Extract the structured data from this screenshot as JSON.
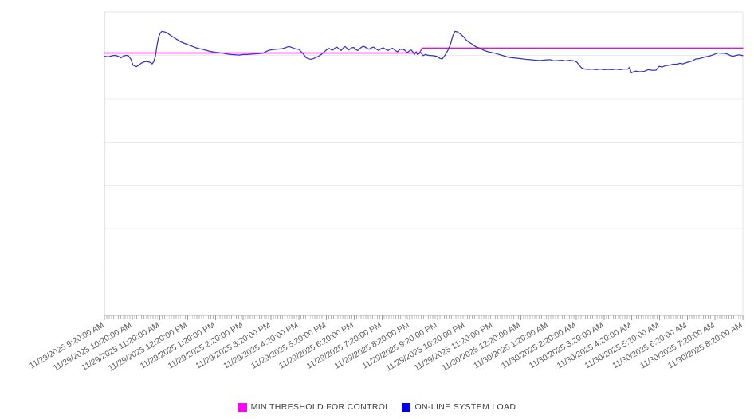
{
  "page": {
    "background": "#ffffff"
  },
  "chart_data": {
    "type": "line",
    "title": "",
    "xlabel": "",
    "ylabel": "",
    "x_axis": {
      "range_hours": [
        0,
        23
      ],
      "minor_ticks_per_hour": 12,
      "label_rotation_deg": -30,
      "tick_labels": [
        "11/29/2025 9:20:00 AM",
        "11/29/2025 10:20:00 AM",
        "11/29/2025 11:20:00 AM",
        "11/29/2025 12:20:00 PM",
        "11/29/2025 1:20:00 PM",
        "11/29/2025 2:20:00 PM",
        "11/29/2025 3:20:00 PM",
        "11/29/2025 4:20:00 PM",
        "11/29/2025 5:20:00 PM",
        "11/29/2025 6:20:00 PM",
        "11/29/2025 7:20:00 PM",
        "11/29/2025 8:20:00 PM",
        "11/29/2025 9:20:00 PM",
        "11/29/2025 10:20:00 PM",
        "11/29/2025 11:20:00 PM",
        "11/30/2025 12:20:00 AM",
        "11/30/2025 1:20:00 AM",
        "11/30/2025 2:20:00 AM",
        "11/30/2025 3:20:00 AM",
        "11/30/2025 4:20:00 AM",
        "11/30/2025 5:20:00 AM",
        "11/30/2025 6:20:00 AM",
        "11/30/2025 7:20:00 AM",
        "11/30/2025 8:20:00 AM"
      ]
    },
    "y_axis": {
      "tick_labels_visible": false,
      "gridline_rows": 7,
      "range": [
        0,
        100
      ],
      "unit": "normalized (no y-axis tick labels rendered)"
    },
    "grid": true,
    "legend_position": "bottom-center",
    "series": [
      {
        "name": "MIN THRESHOLD FOR CONTROL",
        "color": "#e412e0",
        "stroke_width": 1.5,
        "points": [
          [
            0,
            86.5
          ],
          [
            11.35,
            86.5
          ],
          [
            11.45,
            88.1
          ],
          [
            23,
            88.1
          ]
        ]
      },
      {
        "name": "ON-LINE SYSTEM LOAD",
        "color": "#3432c8",
        "stroke_width": 1.25,
        "points": [
          [
            0,
            85.4
          ],
          [
            0.14,
            85.2
          ],
          [
            0.29,
            85.6
          ],
          [
            0.4,
            85.7
          ],
          [
            0.52,
            85.3
          ],
          [
            0.6,
            84.9
          ],
          [
            0.69,
            85.5
          ],
          [
            0.78,
            85.7
          ],
          [
            0.86,
            85.6
          ],
          [
            0.95,
            84.5
          ],
          [
            1.03,
            82.5
          ],
          [
            1.15,
            82
          ],
          [
            1.23,
            82.4
          ],
          [
            1.32,
            83.1
          ],
          [
            1.41,
            83.5
          ],
          [
            1.49,
            83.7
          ],
          [
            1.58,
            83.6
          ],
          [
            1.67,
            83.3
          ],
          [
            1.72,
            82.9
          ],
          [
            1.78,
            83.7
          ],
          [
            1.84,
            85.6
          ],
          [
            1.89,
            88.7
          ],
          [
            1.95,
            91.6
          ],
          [
            2.01,
            93
          ],
          [
            2.07,
            93.6
          ],
          [
            2.12,
            93.5
          ],
          [
            2.18,
            93.4
          ],
          [
            2.24,
            93.2
          ],
          [
            2.3,
            92.8
          ],
          [
            2.35,
            92.5
          ],
          [
            2.41,
            92.1
          ],
          [
            2.5,
            91.6
          ],
          [
            2.58,
            91.1
          ],
          [
            2.67,
            90.6
          ],
          [
            2.76,
            90.1
          ],
          [
            2.84,
            89.8
          ],
          [
            2.96,
            89.4
          ],
          [
            3.07,
            89
          ],
          [
            3.19,
            88.6
          ],
          [
            3.3,
            88.2
          ],
          [
            3.42,
            87.9
          ],
          [
            3.53,
            87.7
          ],
          [
            3.65,
            87.4
          ],
          [
            3.76,
            87.1
          ],
          [
            3.88,
            86.9
          ],
          [
            3.99,
            86.7
          ],
          [
            4.11,
            86.6
          ],
          [
            4.22,
            86.5
          ],
          [
            4.34,
            86.3
          ],
          [
            4.45,
            86.1
          ],
          [
            4.56,
            86
          ],
          [
            4.71,
            85.9
          ],
          [
            4.85,
            85.8
          ],
          [
            5,
            86
          ],
          [
            5.14,
            86
          ],
          [
            5.28,
            86.1
          ],
          [
            5.43,
            86.2
          ],
          [
            5.57,
            86.3
          ],
          [
            5.71,
            86.4
          ],
          [
            5.83,
            87
          ],
          [
            5.94,
            87.4
          ],
          [
            6.06,
            87.6
          ],
          [
            6.17,
            87.7
          ],
          [
            6.29,
            87.8
          ],
          [
            6.4,
            87.9
          ],
          [
            6.52,
            88.2
          ],
          [
            6.6,
            88.5
          ],
          [
            6.66,
            88.6
          ],
          [
            6.75,
            88.3
          ],
          [
            6.83,
            88
          ],
          [
            6.92,
            87.8
          ],
          [
            7,
            87.7
          ],
          [
            7.09,
            86.9
          ],
          [
            7.18,
            86
          ],
          [
            7.26,
            85
          ],
          [
            7.35,
            84.6
          ],
          [
            7.44,
            84.4
          ],
          [
            7.52,
            84.6
          ],
          [
            7.61,
            85
          ],
          [
            7.69,
            85.3
          ],
          [
            7.78,
            85.8
          ],
          [
            7.87,
            86.4
          ],
          [
            7.95,
            87.1
          ],
          [
            8.04,
            87.8
          ],
          [
            8.1,
            88
          ],
          [
            8.18,
            87.5
          ],
          [
            8.24,
            87.5
          ],
          [
            8.3,
            88.1
          ],
          [
            8.38,
            88.4
          ],
          [
            8.44,
            87.9
          ],
          [
            8.53,
            87.3
          ],
          [
            8.61,
            88.2
          ],
          [
            8.67,
            88.6
          ],
          [
            8.76,
            87.9
          ],
          [
            8.81,
            87.5
          ],
          [
            8.9,
            88.2
          ],
          [
            8.99,
            88.3
          ],
          [
            9.04,
            87.7
          ],
          [
            9.13,
            87.3
          ],
          [
            9.22,
            88.1
          ],
          [
            9.3,
            88.6
          ],
          [
            9.36,
            88.6
          ],
          [
            9.45,
            88.1
          ],
          [
            9.53,
            87.7
          ],
          [
            9.62,
            88.2
          ],
          [
            9.7,
            88.4
          ],
          [
            9.79,
            87.8
          ],
          [
            9.88,
            87.3
          ],
          [
            9.96,
            87.9
          ],
          [
            10.05,
            88.2
          ],
          [
            10.13,
            87.7
          ],
          [
            10.22,
            87.3
          ],
          [
            10.31,
            87.9
          ],
          [
            10.39,
            88
          ],
          [
            10.48,
            87.3
          ],
          [
            10.56,
            86.9
          ],
          [
            10.65,
            87.7
          ],
          [
            10.74,
            87.7
          ],
          [
            10.82,
            87.4
          ],
          [
            10.91,
            86.6
          ],
          [
            10.97,
            87.1
          ],
          [
            11.05,
            87.5
          ],
          [
            11.11,
            86.9
          ],
          [
            11.17,
            86
          ],
          [
            11.23,
            86.9
          ],
          [
            11.28,
            86
          ],
          [
            11.4,
            86.6
          ],
          [
            11.48,
            85.6
          ],
          [
            11.57,
            86
          ],
          [
            11.68,
            85.7
          ],
          [
            11.83,
            85.6
          ],
          [
            11.97,
            85.4
          ],
          [
            12.09,
            84.7
          ],
          [
            12.17,
            84.5
          ],
          [
            12.26,
            85.6
          ],
          [
            12.37,
            87.3
          ],
          [
            12.46,
            89.1
          ],
          [
            12.55,
            92.1
          ],
          [
            12.63,
            93.6
          ],
          [
            12.72,
            93.4
          ],
          [
            12.83,
            92.7
          ],
          [
            12.95,
            91.7
          ],
          [
            13.03,
            90.8
          ],
          [
            13.12,
            90.1
          ],
          [
            13.23,
            89.5
          ],
          [
            13.32,
            88.9
          ],
          [
            13.41,
            88.4
          ],
          [
            13.52,
            88.1
          ],
          [
            13.64,
            87.5
          ],
          [
            13.75,
            87.1
          ],
          [
            13.9,
            86.7
          ],
          [
            14.04,
            86.5
          ],
          [
            14.18,
            86.1
          ],
          [
            14.33,
            85.7
          ],
          [
            14.47,
            85.3
          ],
          [
            14.61,
            85
          ],
          [
            14.81,
            84.8
          ],
          [
            15.01,
            84.6
          ],
          [
            15.19,
            84.4
          ],
          [
            15.36,
            84.3
          ],
          [
            15.53,
            84.1
          ],
          [
            15.7,
            84
          ],
          [
            15.88,
            84.2
          ],
          [
            16.05,
            84.3
          ],
          [
            16.19,
            83.9
          ],
          [
            16.34,
            84
          ],
          [
            16.48,
            84.1
          ],
          [
            16.62,
            83.9
          ],
          [
            16.77,
            84.1
          ],
          [
            16.91,
            83.9
          ],
          [
            17.02,
            83.5
          ],
          [
            17.11,
            82.4
          ],
          [
            17.2,
            81.5
          ],
          [
            17.31,
            81.2
          ],
          [
            17.43,
            81.1
          ],
          [
            17.57,
            81.2
          ],
          [
            17.71,
            81
          ],
          [
            17.86,
            81.2
          ],
          [
            18,
            81
          ],
          [
            18.14,
            81.1
          ],
          [
            18.29,
            81
          ],
          [
            18.43,
            81.2
          ],
          [
            18.57,
            81
          ],
          [
            18.72,
            81.2
          ],
          [
            18.86,
            81.2
          ],
          [
            18.92,
            81.8
          ],
          [
            18.98,
            79.9
          ],
          [
            19.06,
            80.3
          ],
          [
            19.15,
            80.5
          ],
          [
            19.29,
            80.3
          ],
          [
            19.44,
            80.4
          ],
          [
            19.58,
            81
          ],
          [
            19.72,
            80.8
          ],
          [
            19.87,
            80.8
          ],
          [
            19.98,
            82.1
          ],
          [
            20.1,
            81.9
          ],
          [
            20.21,
            82.3
          ],
          [
            20.36,
            82.5
          ],
          [
            20.5,
            82.8
          ],
          [
            20.64,
            82.8
          ],
          [
            20.73,
            83.1
          ],
          [
            20.84,
            82.9
          ],
          [
            20.96,
            83.3
          ],
          [
            21.07,
            83.6
          ],
          [
            21.19,
            83.9
          ],
          [
            21.3,
            84.5
          ],
          [
            21.42,
            84.6
          ],
          [
            21.53,
            84.9
          ],
          [
            21.65,
            85.2
          ],
          [
            21.76,
            85.4
          ],
          [
            21.88,
            85.7
          ],
          [
            21.99,
            86.1
          ],
          [
            22.11,
            86.5
          ],
          [
            22.22,
            86.4
          ],
          [
            22.33,
            86.4
          ],
          [
            22.45,
            86.1
          ],
          [
            22.56,
            85.6
          ],
          [
            22.65,
            85.4
          ],
          [
            22.76,
            85.7
          ],
          [
            22.88,
            85.9
          ],
          [
            23,
            85.6
          ]
        ]
      }
    ]
  },
  "legend": {
    "items": [
      {
        "label": "MIN THRESHOLD FOR CONTROL",
        "color": "#ff00ff"
      },
      {
        "label": "ON-LINE SYSTEM LOAD",
        "color": "#0000ee"
      }
    ]
  }
}
